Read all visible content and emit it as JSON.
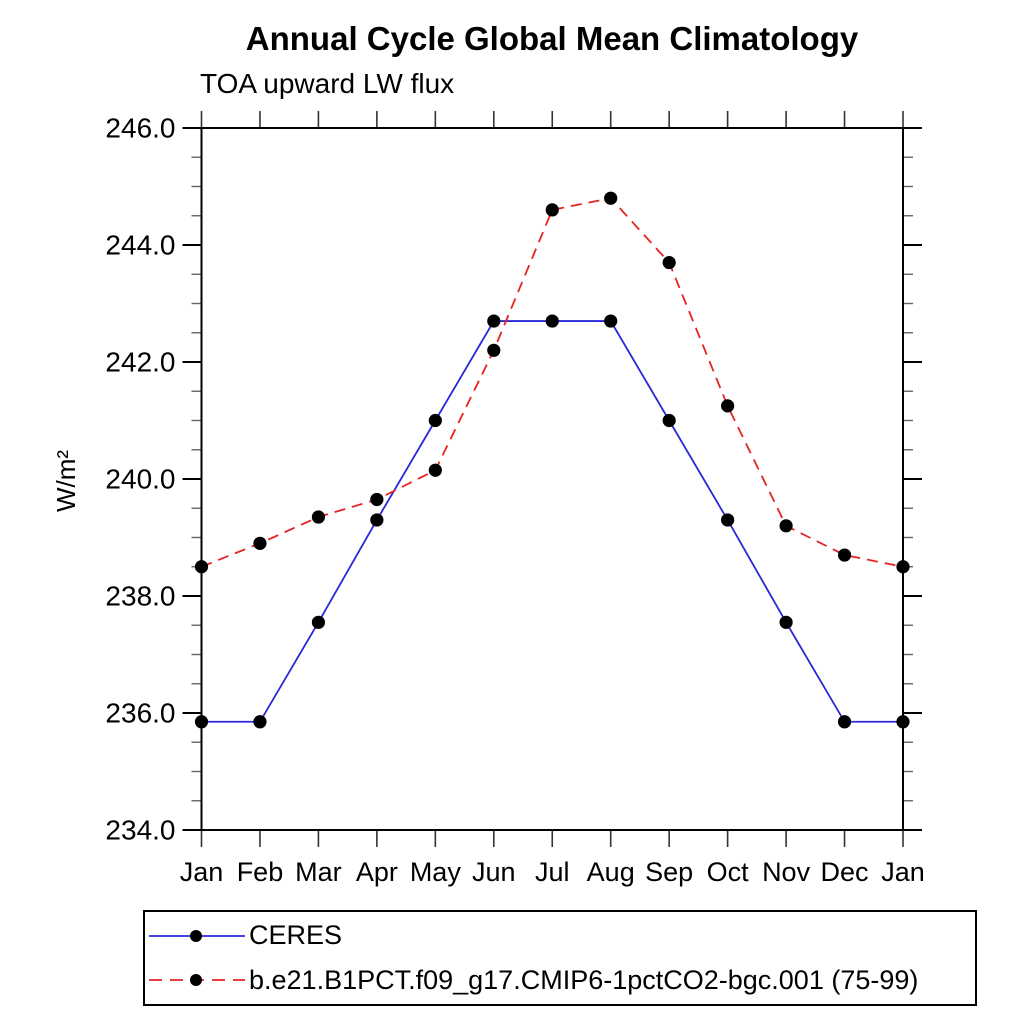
{
  "chart": {
    "title": "Annual Cycle Global Mean Climatology",
    "subtitle": "TOA upward LW flux",
    "ylabel": "W/m²"
  },
  "chart_data": {
    "type": "line",
    "title": "Annual Cycle Global Mean Climatology",
    "subtitle": "TOA upward LW flux",
    "xlabel": "",
    "ylabel": "W/m²",
    "x_categories": [
      "Jan",
      "Feb",
      "Mar",
      "Apr",
      "May",
      "Jun",
      "Jul",
      "Aug",
      "Sep",
      "Oct",
      "Nov",
      "Dec",
      "Jan"
    ],
    "ylim": [
      234.0,
      246.0
    ],
    "ytick_major_interval": 2.0,
    "ytick_minor_interval": 0.5,
    "ytick_label_format": "one-decimal",
    "grid": false,
    "legend_position": "below-left-box",
    "frame_color": "#000000",
    "minor_tick_color": "#666666",
    "marker_color": "#000000",
    "series": [
      {
        "name": "CERES",
        "color": "#2828d8",
        "line_style": "solid",
        "marker": "filled-circle",
        "values": [
          235.85,
          235.85,
          237.55,
          239.3,
          241.0,
          242.7,
          242.7,
          242.7,
          241.0,
          239.3,
          237.55,
          235.85,
          235.85
        ]
      },
      {
        "name": "b.e21.B1PCT.f09_g17.CMIP6-1pctCO2-bgc.001 (75-99)",
        "color": "#e82222",
        "line_style": "dashed",
        "marker": "filled-circle",
        "values": [
          238.5,
          238.9,
          239.35,
          239.65,
          240.15,
          242.2,
          244.6,
          244.8,
          243.7,
          241.25,
          239.2,
          238.7,
          238.5
        ]
      }
    ]
  }
}
